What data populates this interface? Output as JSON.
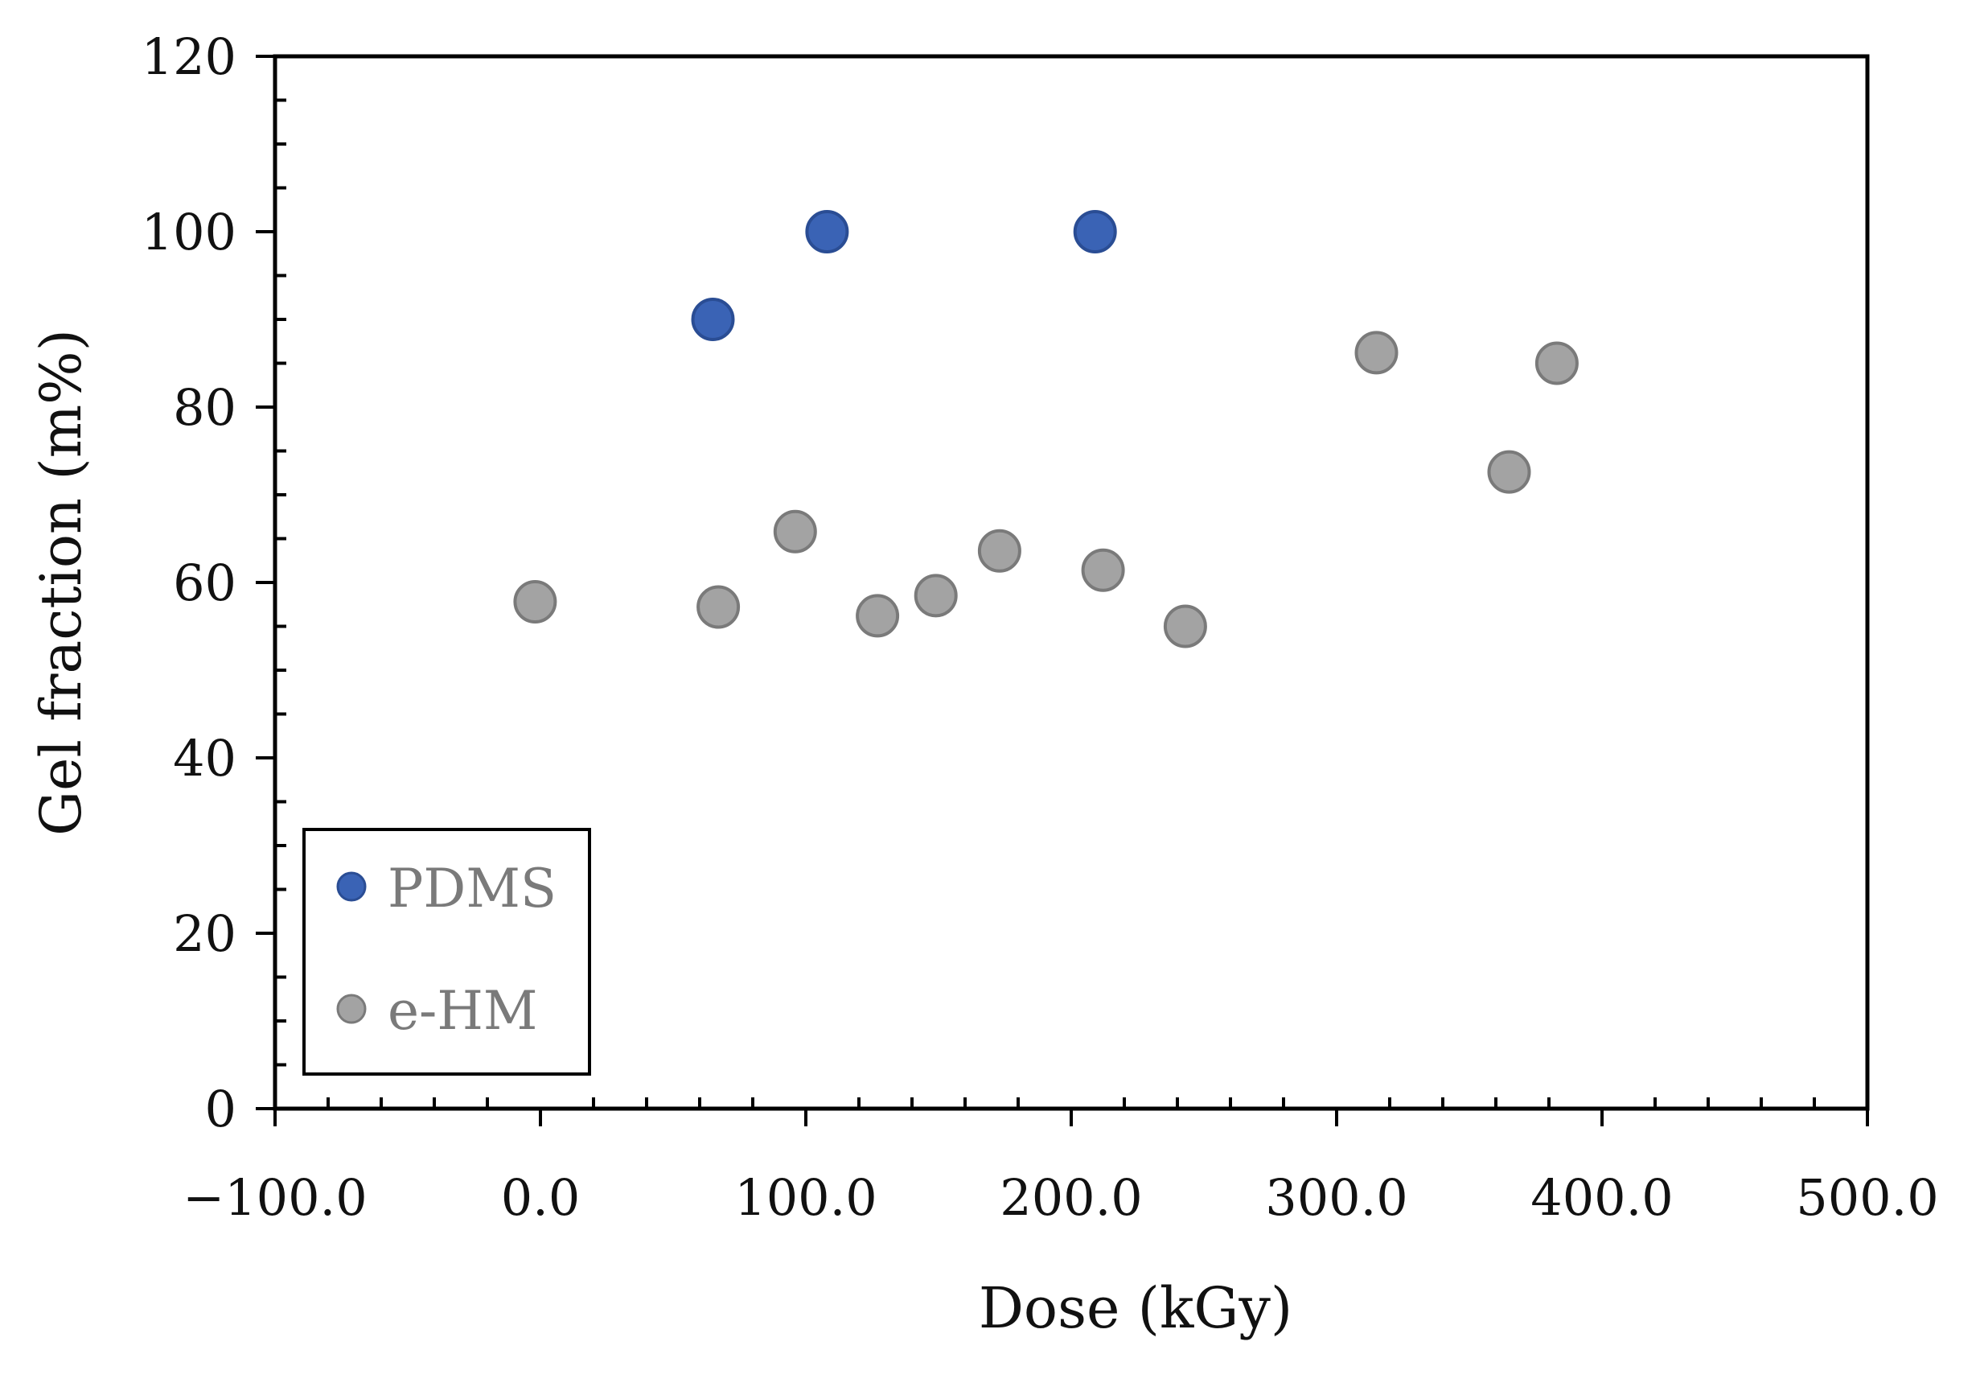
{
  "chart_data": {
    "type": "scatter",
    "title": "",
    "xlabel": "Dose (kGy)",
    "ylabel": "Gel fraction (m%)",
    "xlim": [
      -100,
      500
    ],
    "ylim": [
      0,
      120
    ],
    "x_ticks": [
      -100,
      0,
      100,
      200,
      300,
      400,
      500
    ],
    "x_tick_labels": [
      "−100.0",
      "0.0",
      "100.0",
      "200.0",
      "300.0",
      "400.0",
      "500.0"
    ],
    "y_ticks": [
      0,
      20,
      40,
      60,
      80,
      100,
      120
    ],
    "y_tick_labels": [
      "0",
      "20",
      "40",
      "60",
      "80",
      "100",
      "120"
    ],
    "grid": false,
    "legend_position": "bottom-left",
    "series": [
      {
        "name": "PDMS",
        "color": "#3a63b5",
        "edge_color": "#2a4d94",
        "points": [
          {
            "x": 65,
            "y": 90
          },
          {
            "x": 108,
            "y": 100
          },
          {
            "x": 209,
            "y": 100
          }
        ]
      },
      {
        "name": "e-HM",
        "color": "#a3a3a3",
        "edge_color": "#7a7a7a",
        "points": [
          {
            "x": -2,
            "y": 57.8
          },
          {
            "x": 67,
            "y": 57.2
          },
          {
            "x": 96,
            "y": 65.8
          },
          {
            "x": 127,
            "y": 56.2
          },
          {
            "x": 149,
            "y": 58.5
          },
          {
            "x": 173,
            "y": 63.6
          },
          {
            "x": 212,
            "y": 61.4
          },
          {
            "x": 243,
            "y": 55
          },
          {
            "x": 315,
            "y": 86.2
          },
          {
            "x": 365,
            "y": 72.6
          },
          {
            "x": 383,
            "y": 85
          }
        ]
      }
    ]
  }
}
